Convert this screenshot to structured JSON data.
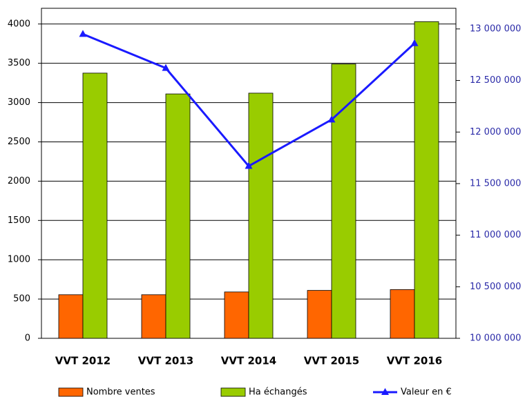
{
  "chart_data": {
    "type": "bar",
    "categories": [
      "VVT 2012",
      "VVT 2013",
      "VVT 2014",
      "VVT 2015",
      "VVT 2016"
    ],
    "series": [
      {
        "name": "Nombre ventes",
        "color": "#ff6600",
        "values": [
          555,
          555,
          590,
          610,
          620
        ]
      },
      {
        "name": "Ha échangés",
        "color": "#99cc00",
        "values": [
          3375,
          3110,
          3120,
          3490,
          4030
        ]
      },
      {
        "name": "Valeur en €",
        "color": "#1a1aff",
        "type": "line",
        "axis": "y2",
        "values": [
          12950000,
          12620000,
          11670000,
          12120000,
          12860000
        ]
      }
    ],
    "ylim": [
      0,
      4200
    ],
    "yticks": [
      0,
      500,
      1000,
      1500,
      2000,
      2500,
      3000,
      3500,
      4000
    ],
    "y2lim": [
      10000000,
      13200000
    ],
    "y2ticks": [
      {
        "value": 10000000,
        "label": "10 000 000"
      },
      {
        "value": 10500000,
        "label": "10 500 000"
      },
      {
        "value": 11000000,
        "label": "11 000 000"
      },
      {
        "value": 11500000,
        "label": "11 500 000"
      },
      {
        "value": 12000000,
        "label": "12 000 000"
      },
      {
        "value": 12500000,
        "label": "12 500 000"
      },
      {
        "value": 13000000,
        "label": "13 000 000"
      }
    ],
    "grid": true,
    "legend": "bottom"
  }
}
